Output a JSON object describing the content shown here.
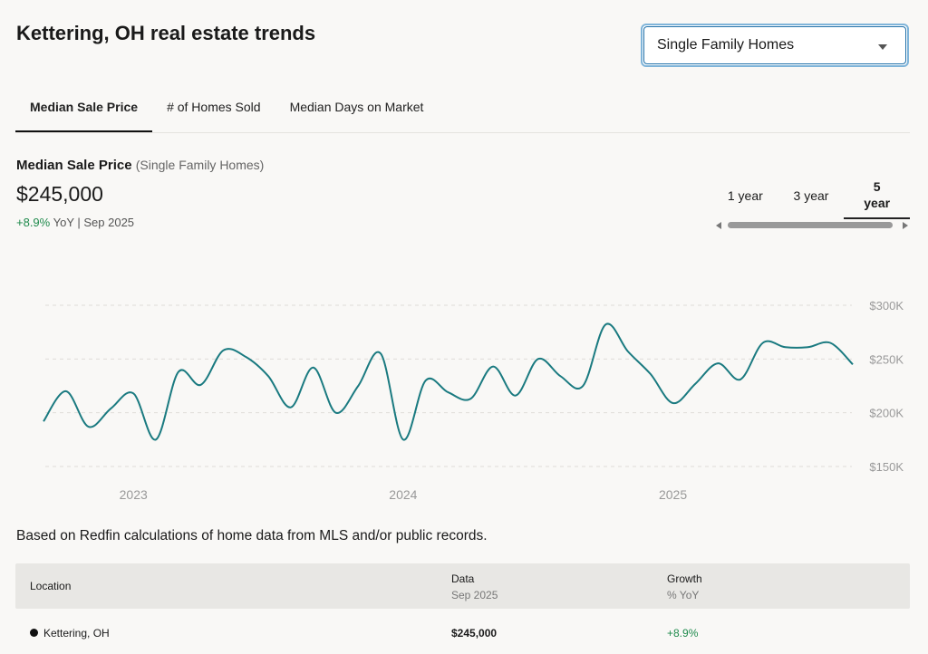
{
  "page": {
    "title": "Kettering, OH real estate trends"
  },
  "property_select": {
    "value": "Single Family Homes",
    "icon": "chevron-down-icon"
  },
  "tabs": [
    {
      "label": "Median Sale Price",
      "active": true
    },
    {
      "label": "# of Homes Sold",
      "active": false
    },
    {
      "label": "Median Days on Market",
      "active": false
    }
  ],
  "metric": {
    "title": "Median Sale Price",
    "subtitle": "(Single Family Homes)",
    "value": "$245,000",
    "change": "+8.9%",
    "change_suffix": "YoY | Sep 2025"
  },
  "ranges": [
    {
      "label": "1 year",
      "active": false
    },
    {
      "label": "3 year",
      "active": false
    },
    {
      "label": "5 year",
      "active": true
    }
  ],
  "chart_data": {
    "type": "line",
    "title": "",
    "xlabel": "",
    "ylabel": "",
    "x_ticks": [
      "2023",
      "2024",
      "2025"
    ],
    "y_ticks": [
      "$150K",
      "$200K",
      "$250K",
      "$300K"
    ],
    "ylim": [
      150000,
      300000
    ],
    "grid": true,
    "line_color": "#1a7a80",
    "series": [
      {
        "x": [
          "2022-09",
          "2022-10",
          "2022-11",
          "2022-12",
          "2023-01",
          "2023-02",
          "2023-03",
          "2023-04",
          "2023-05",
          "2023-06",
          "2023-07",
          "2023-08",
          "2023-09",
          "2023-10",
          "2023-11",
          "2023-12",
          "2024-01",
          "2024-02",
          "2024-03",
          "2024-04",
          "2024-05",
          "2024-06",
          "2024-07",
          "2024-08",
          "2024-09",
          "2024-10",
          "2024-11",
          "2024-12",
          "2025-01",
          "2025-02",
          "2025-03",
          "2025-04",
          "2025-05",
          "2025-06",
          "2025-07",
          "2025-08",
          "2025-09"
        ],
        "values": [
          192000,
          220000,
          187000,
          204000,
          218000,
          175000,
          238000,
          226000,
          258000,
          252000,
          234000,
          205000,
          242000,
          200000,
          225000,
          255000,
          175000,
          230000,
          219000,
          213000,
          243000,
          216000,
          250000,
          234000,
          225000,
          282000,
          257000,
          236000,
          209000,
          227000,
          246000,
          231000,
          265000,
          261000,
          261000,
          265000,
          245000
        ]
      }
    ]
  },
  "footnote": "Based on Redfin calculations of home data from MLS and/or public records.",
  "table": {
    "headers": {
      "location": "Location",
      "data": "Data",
      "data_sub": "Sep 2025",
      "growth": "Growth",
      "growth_sub": "% YoY"
    },
    "rows": [
      {
        "location": "Kettering, OH",
        "data": "$245,000",
        "growth": "+8.9%"
      }
    ]
  }
}
